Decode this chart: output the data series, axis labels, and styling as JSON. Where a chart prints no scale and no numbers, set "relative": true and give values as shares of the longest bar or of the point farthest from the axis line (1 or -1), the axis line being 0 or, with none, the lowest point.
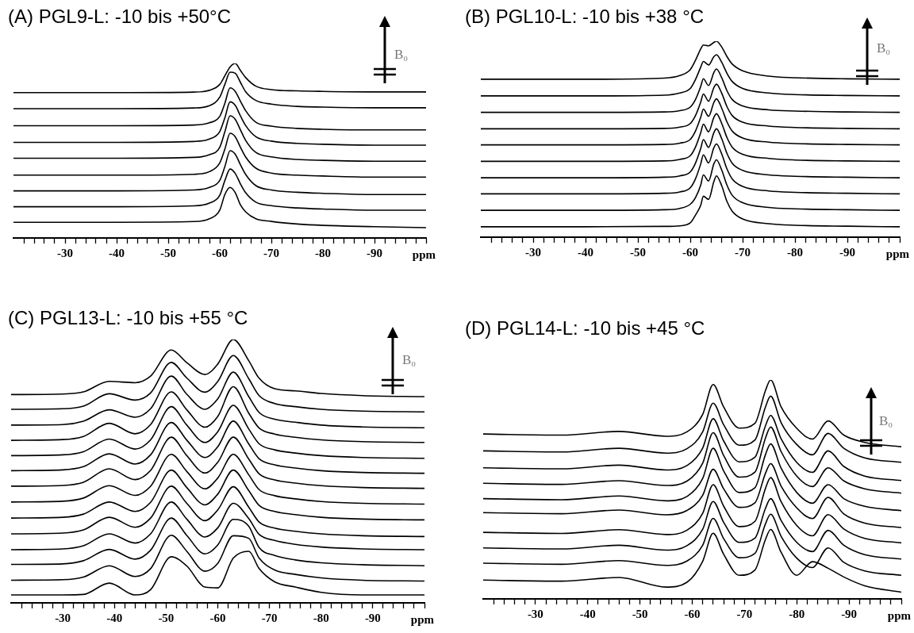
{
  "chart_data": [
    {
      "type": "line",
      "title": "(A) PGL9-L: -10 bis +50°C",
      "xlabel": "ppm",
      "relative": true,
      "marker": "none",
      "annotations": [
        "B₀"
      ],
      "xlim": [
        -20,
        -100
      ],
      "xticks": [
        {
          "value": -22,
          "label": null
        },
        {
          "value": -24,
          "label": null
        },
        {
          "value": -26,
          "label": null
        },
        {
          "value": -28,
          "label": null
        },
        -30,
        {
          "value": -32,
          "label": null
        },
        {
          "value": -34,
          "label": null
        },
        {
          "value": -36,
          "label": null
        },
        {
          "value": -38,
          "label": null
        },
        -40,
        {
          "value": -42,
          "label": null
        },
        {
          "value": -44,
          "label": null
        },
        {
          "value": -46,
          "label": null
        },
        {
          "value": -48,
          "label": null
        },
        -50,
        {
          "value": -52,
          "label": null
        },
        {
          "value": -54,
          "label": null
        },
        {
          "value": -56,
          "label": null
        },
        {
          "value": -58,
          "label": null
        },
        -60,
        {
          "value": -62,
          "label": null
        },
        {
          "value": -64,
          "label": null
        },
        {
          "value": -66,
          "label": null
        },
        {
          "value": -68,
          "label": null
        },
        -70,
        {
          "value": -72,
          "label": null
        },
        {
          "value": -74,
          "label": null
        },
        {
          "value": -76,
          "label": null
        },
        {
          "value": -78,
          "label": null
        },
        -80,
        {
          "value": -82,
          "label": null
        },
        {
          "value": -84,
          "label": null
        },
        {
          "value": -86,
          "label": null
        },
        {
          "value": -88,
          "label": null
        },
        -90,
        {
          "value": -92,
          "label": null
        },
        {
          "value": -94,
          "label": null
        },
        {
          "value": -96,
          "label": null
        },
        {
          "value": -98,
          "label": null
        },
        {
          "value": -100,
          "label": null
        }
      ],
      "x": [
        -20,
        -40,
        -55,
        -58,
        -60,
        -61,
        -62,
        -63,
        -64,
        -65,
        -67,
        -70,
        -75,
        -80,
        -90,
        -100
      ],
      "series": [
        {
          "color": "#000000",
          "values": [
            0.833,
            0.833,
            0.836,
            0.846,
            0.88,
            0.93,
            0.98,
            1.0,
            0.96,
            0.92,
            0.87,
            0.85,
            0.843,
            0.84,
            0.837,
            0.837
          ]
        },
        {
          "color": "#000000",
          "values": [
            0.741,
            0.741,
            0.745,
            0.758,
            0.807,
            0.881,
            0.95,
            0.944,
            0.892,
            0.839,
            0.788,
            0.767,
            0.754,
            0.75,
            0.746,
            0.746
          ]
        },
        {
          "color": "#000000",
          "values": [
            0.643,
            0.643,
            0.647,
            0.66,
            0.697,
            0.773,
            0.86,
            0.84,
            0.784,
            0.73,
            0.663,
            0.641,
            0.628,
            0.623,
            0.619,
            0.619
          ]
        },
        {
          "color": "#000000",
          "values": [
            0.548,
            0.548,
            0.553,
            0.567,
            0.61,
            0.69,
            0.78,
            0.76,
            0.7,
            0.645,
            0.58,
            0.555,
            0.542,
            0.537,
            0.532,
            0.532
          ]
        },
        {
          "color": "#000000",
          "values": [
            0.457,
            0.457,
            0.462,
            0.477,
            0.52,
            0.61,
            0.7,
            0.68,
            0.62,
            0.56,
            0.49,
            0.465,
            0.45,
            0.445,
            0.44,
            0.44
          ]
        },
        {
          "color": "#000000",
          "values": [
            0.36,
            0.36,
            0.365,
            0.38,
            0.43,
            0.51,
            0.6,
            0.58,
            0.52,
            0.465,
            0.4,
            0.372,
            0.36,
            0.355,
            0.349,
            0.349
          ]
        },
        {
          "color": "#000000",
          "values": [
            0.27,
            0.27,
            0.275,
            0.29,
            0.33,
            0.41,
            0.5,
            0.48,
            0.42,
            0.365,
            0.3,
            0.275,
            0.262,
            0.256,
            0.249,
            0.249
          ]
        },
        {
          "color": "#000000",
          "values": [
            0.179,
            0.179,
            0.184,
            0.2,
            0.245,
            0.33,
            0.395,
            0.37,
            0.31,
            0.26,
            0.205,
            0.185,
            0.172,
            0.166,
            0.159,
            0.159
          ]
        },
        {
          "color": "#000000",
          "values": [
            0.09,
            0.09,
            0.094,
            0.11,
            0.16,
            0.25,
            0.29,
            0.26,
            0.19,
            0.15,
            0.11,
            0.095,
            0.08,
            0.072,
            0.065,
            0.059
          ]
        }
      ]
    },
    {
      "type": "line",
      "title": "(B) PGL10-L: -10 bis +38 °C",
      "xlabel": "ppm",
      "relative": true,
      "marker": "none",
      "annotations": [
        "B₀"
      ],
      "xlim": [
        -20,
        -100
      ],
      "xticks": [
        {
          "value": -22,
          "label": null
        },
        {
          "value": -24,
          "label": null
        },
        {
          "value": -26,
          "label": null
        },
        {
          "value": -28,
          "label": null
        },
        -30,
        {
          "value": -32,
          "label": null
        },
        {
          "value": -34,
          "label": null
        },
        {
          "value": -36,
          "label": null
        },
        {
          "value": -38,
          "label": null
        },
        -40,
        {
          "value": -42,
          "label": null
        },
        {
          "value": -44,
          "label": null
        },
        {
          "value": -46,
          "label": null
        },
        {
          "value": -48,
          "label": null
        },
        -50,
        {
          "value": -52,
          "label": null
        },
        {
          "value": -54,
          "label": null
        },
        {
          "value": -56,
          "label": null
        },
        {
          "value": -58,
          "label": null
        },
        -60,
        {
          "value": -62,
          "label": null
        },
        {
          "value": -64,
          "label": null
        },
        {
          "value": -66,
          "label": null
        },
        {
          "value": -68,
          "label": null
        },
        -70,
        {
          "value": -72,
          "label": null
        },
        {
          "value": -74,
          "label": null
        },
        {
          "value": -76,
          "label": null
        },
        {
          "value": -78,
          "label": null
        },
        -80,
        {
          "value": -82,
          "label": null
        },
        {
          "value": -84,
          "label": null
        },
        {
          "value": -86,
          "label": null
        },
        {
          "value": -88,
          "label": null
        },
        -90,
        {
          "value": -92,
          "label": null
        },
        {
          "value": -94,
          "label": null
        },
        {
          "value": -96,
          "label": null
        },
        {
          "value": -98,
          "label": null
        },
        {
          "value": -100,
          "label": null
        }
      ],
      "x": [
        -20,
        -40,
        -55,
        -58,
        -60,
        -61,
        -62,
        -62.5,
        -63.5,
        -64.5,
        -65,
        -66,
        -67,
        -68,
        -70,
        -75,
        -80,
        -90,
        -100
      ],
      "series": [
        {
          "color": "#000000",
          "values": [
            0.806,
            0.806,
            0.812,
            0.825,
            0.855,
            0.903,
            0.961,
            0.981,
            0.977,
            0.994,
            1.0,
            0.971,
            0.922,
            0.884,
            0.849,
            0.822,
            0.814,
            0.808,
            0.806
          ]
        },
        {
          "color": "#000000",
          "values": [
            0.721,
            0.721,
            0.725,
            0.736,
            0.759,
            0.805,
            0.868,
            0.897,
            0.879,
            0.921,
            0.931,
            0.893,
            0.837,
            0.795,
            0.759,
            0.736,
            0.728,
            0.723,
            0.721
          ]
        },
        {
          "color": "#000000",
          "values": [
            0.637,
            0.637,
            0.639,
            0.646,
            0.664,
            0.703,
            0.77,
            0.809,
            0.774,
            0.84,
            0.858,
            0.814,
            0.748,
            0.703,
            0.67,
            0.65,
            0.644,
            0.639,
            0.637
          ]
        },
        {
          "color": "#000000",
          "values": [
            0.553,
            0.553,
            0.555,
            0.562,
            0.58,
            0.621,
            0.69,
            0.731,
            0.694,
            0.763,
            0.781,
            0.735,
            0.667,
            0.621,
            0.587,
            0.567,
            0.56,
            0.555,
            0.553
          ]
        },
        {
          "color": "#000000",
          "values": [
            0.471,
            0.471,
            0.473,
            0.48,
            0.499,
            0.542,
            0.612,
            0.654,
            0.617,
            0.687,
            0.706,
            0.659,
            0.589,
            0.542,
            0.506,
            0.485,
            0.478,
            0.473,
            0.471
          ]
        },
        {
          "color": "#000000",
          "values": [
            0.387,
            0.387,
            0.389,
            0.397,
            0.416,
            0.46,
            0.533,
            0.577,
            0.538,
            0.611,
            0.63,
            0.581,
            0.509,
            0.46,
            0.423,
            0.402,
            0.394,
            0.389,
            0.387
          ]
        },
        {
          "color": "#000000",
          "values": [
            0.303,
            0.303,
            0.306,
            0.313,
            0.333,
            0.378,
            0.453,
            0.498,
            0.458,
            0.533,
            0.553,
            0.503,
            0.428,
            0.378,
            0.341,
            0.318,
            0.311,
            0.306,
            0.303
          ]
        },
        {
          "color": "#000000",
          "values": [
            0.221,
            0.221,
            0.224,
            0.231,
            0.252,
            0.298,
            0.374,
            0.42,
            0.379,
            0.456,
            0.476,
            0.425,
            0.349,
            0.298,
            0.259,
            0.236,
            0.229,
            0.224,
            0.221
          ]
        },
        {
          "color": "#000000",
          "values": [
            0.137,
            0.137,
            0.14,
            0.147,
            0.168,
            0.202,
            0.266,
            0.318,
            0.287,
            0.374,
            0.395,
            0.343,
            0.266,
            0.214,
            0.176,
            0.152,
            0.145,
            0.14,
            0.137
          ]
        },
        {
          "color": "#000000",
          "values": [
            0.053,
            0.053,
            0.055,
            0.058,
            0.073,
            0.113,
            0.163,
            0.209,
            0.193,
            0.283,
            0.313,
            0.263,
            0.183,
            0.133,
            0.093,
            0.069,
            0.061,
            0.056,
            0.053
          ]
        }
      ]
    },
    {
      "type": "line",
      "title": "(C) PGL13-L: -10 bis +55 °C",
      "xlabel": "ppm",
      "relative": true,
      "marker": "none",
      "annotations": [
        "B₀"
      ],
      "xlim": [
        -20,
        -100
      ],
      "xticks": [
        {
          "value": -22,
          "label": null
        },
        {
          "value": -24,
          "label": null
        },
        {
          "value": -26,
          "label": null
        },
        {
          "value": -28,
          "label": null
        },
        -30,
        {
          "value": -32,
          "label": null
        },
        {
          "value": -34,
          "label": null
        },
        {
          "value": -36,
          "label": null
        },
        {
          "value": -38,
          "label": null
        },
        -40,
        {
          "value": -42,
          "label": null
        },
        {
          "value": -44,
          "label": null
        },
        {
          "value": -46,
          "label": null
        },
        {
          "value": -48,
          "label": null
        },
        -50,
        {
          "value": -52,
          "label": null
        },
        {
          "value": -54,
          "label": null
        },
        {
          "value": -56,
          "label": null
        },
        {
          "value": -58,
          "label": null
        },
        -60,
        {
          "value": -62,
          "label": null
        },
        {
          "value": -64,
          "label": null
        },
        {
          "value": -66,
          "label": null
        },
        {
          "value": -68,
          "label": null
        },
        -70,
        {
          "value": -72,
          "label": null
        },
        {
          "value": -74,
          "label": null
        },
        {
          "value": -76,
          "label": null
        },
        {
          "value": -78,
          "label": null
        },
        -80,
        {
          "value": -82,
          "label": null
        },
        {
          "value": -84,
          "label": null
        },
        {
          "value": -86,
          "label": null
        },
        {
          "value": -88,
          "label": null
        },
        -90,
        {
          "value": -92,
          "label": null
        },
        {
          "value": -94,
          "label": null
        },
        {
          "value": -96,
          "label": null
        },
        {
          "value": -98,
          "label": null
        },
        {
          "value": -100,
          "label": null
        }
      ],
      "x": [
        -20,
        -30,
        -34,
        -39,
        -44,
        -47,
        -51,
        -54,
        -57.5,
        -60,
        -63,
        -66,
        -68,
        -71,
        -75,
        -80,
        -88,
        -100
      ],
      "series": [
        {
          "color": "#000000",
          "values": [
            0.791,
            0.793,
            0.801,
            0.841,
            0.836,
            0.861,
            0.96,
            0.912,
            0.867,
            0.907,
            1.0,
            0.919,
            0.853,
            0.813,
            0.805,
            0.795,
            0.787,
            0.783
          ]
        },
        {
          "color": "#000000",
          "values": [
            0.735,
            0.737,
            0.747,
            0.794,
            0.77,
            0.797,
            0.913,
            0.854,
            0.8,
            0.841,
            0.939,
            0.851,
            0.787,
            0.757,
            0.745,
            0.735,
            0.728,
            0.725
          ]
        },
        {
          "color": "#000000",
          "values": [
            0.675,
            0.677,
            0.69,
            0.733,
            0.705,
            0.737,
            0.861,
            0.792,
            0.735,
            0.775,
            0.876,
            0.783,
            0.723,
            0.697,
            0.686,
            0.675,
            0.668,
            0.665
          ]
        },
        {
          "color": "#000000",
          "values": [
            0.617,
            0.62,
            0.632,
            0.682,
            0.642,
            0.677,
            0.801,
            0.733,
            0.667,
            0.708,
            0.821,
            0.72,
            0.664,
            0.641,
            0.629,
            0.619,
            0.612,
            0.609
          ]
        },
        {
          "color": "#000000",
          "values": [
            0.559,
            0.562,
            0.574,
            0.622,
            0.584,
            0.619,
            0.745,
            0.675,
            0.609,
            0.65,
            0.75,
            0.66,
            0.604,
            0.581,
            0.569,
            0.559,
            0.552,
            0.549
          ]
        },
        {
          "color": "#000000",
          "values": [
            0.502,
            0.505,
            0.517,
            0.566,
            0.527,
            0.562,
            0.685,
            0.618,
            0.552,
            0.593,
            0.69,
            0.603,
            0.547,
            0.524,
            0.512,
            0.502,
            0.495,
            0.492
          ]
        },
        {
          "color": "#000000",
          "values": [
            0.443,
            0.446,
            0.458,
            0.509,
            0.468,
            0.503,
            0.629,
            0.559,
            0.493,
            0.534,
            0.629,
            0.546,
            0.49,
            0.467,
            0.455,
            0.445,
            0.438,
            0.435
          ]
        },
        {
          "color": "#000000",
          "values": [
            0.383,
            0.386,
            0.398,
            0.445,
            0.408,
            0.443,
            0.564,
            0.499,
            0.433,
            0.474,
            0.564,
            0.486,
            0.43,
            0.407,
            0.395,
            0.385,
            0.378,
            0.375
          ]
        },
        {
          "color": "#000000",
          "values": [
            0.322,
            0.325,
            0.337,
            0.383,
            0.347,
            0.382,
            0.504,
            0.438,
            0.372,
            0.413,
            0.504,
            0.426,
            0.37,
            0.347,
            0.335,
            0.325,
            0.318,
            0.315
          ]
        },
        {
          "color": "#000000",
          "values": [
            0.262,
            0.265,
            0.277,
            0.325,
            0.287,
            0.322,
            0.443,
            0.378,
            0.312,
            0.353,
            0.441,
            0.363,
            0.307,
            0.284,
            0.272,
            0.262,
            0.255,
            0.252
          ]
        },
        {
          "color": "#000000",
          "values": [
            0.202,
            0.205,
            0.217,
            0.262,
            0.227,
            0.262,
            0.383,
            0.318,
            0.25,
            0.285,
            0.378,
            0.32,
            0.26,
            0.237,
            0.222,
            0.212,
            0.205,
            0.202
          ]
        },
        {
          "color": "#000000",
          "values": [
            0.146,
            0.148,
            0.16,
            0.203,
            0.166,
            0.2,
            0.322,
            0.256,
            0.186,
            0.22,
            0.317,
            0.291,
            0.21,
            0.18,
            0.163,
            0.152,
            0.145,
            0.141
          ]
        },
        {
          "color": "#000000",
          "values": [
            0.086,
            0.088,
            0.098,
            0.141,
            0.1,
            0.13,
            0.257,
            0.196,
            0.12,
            0.15,
            0.255,
            0.245,
            0.17,
            0.125,
            0.108,
            0.095,
            0.086,
            0.083
          ]
        },
        {
          "color": "#000000",
          "values": [
            0.03,
            0.03,
            0.032,
            0.075,
            0.03,
            0.05,
            0.175,
            0.14,
            0.06,
            0.057,
            0.17,
            0.196,
            0.13,
            0.08,
            0.06,
            0.04,
            0.03,
            0.03
          ]
        }
      ]
    },
    {
      "type": "line",
      "title": "(D) PGL14-L: -10 bis +45 °C",
      "xlabel": "ppm",
      "relative": true,
      "marker": "none",
      "annotations": [
        "B₀"
      ],
      "xlim": [
        -20,
        -100
      ],
      "xticks": [
        {
          "value": -22,
          "label": null
        },
        {
          "value": -24,
          "label": null
        },
        {
          "value": -26,
          "label": null
        },
        {
          "value": -28,
          "label": null
        },
        -30,
        {
          "value": -32,
          "label": null
        },
        {
          "value": -34,
          "label": null
        },
        {
          "value": -36,
          "label": null
        },
        {
          "value": -38,
          "label": null
        },
        -40,
        {
          "value": -42,
          "label": null
        },
        {
          "value": -44,
          "label": null
        },
        {
          "value": -46,
          "label": null
        },
        {
          "value": -48,
          "label": null
        },
        -50,
        {
          "value": -52,
          "label": null
        },
        {
          "value": -54,
          "label": null
        },
        {
          "value": -56,
          "label": null
        },
        {
          "value": -58,
          "label": null
        },
        -60,
        {
          "value": -62,
          "label": null
        },
        {
          "value": -64,
          "label": null
        },
        {
          "value": -66,
          "label": null
        },
        {
          "value": -68,
          "label": null
        },
        -70,
        {
          "value": -72,
          "label": null
        },
        {
          "value": -74,
          "label": null
        },
        {
          "value": -76,
          "label": null
        },
        {
          "value": -78,
          "label": null
        },
        -80,
        {
          "value": -82,
          "label": null
        },
        {
          "value": -84,
          "label": null
        },
        {
          "value": -86,
          "label": null
        },
        {
          "value": -88,
          "label": null
        },
        -90,
        {
          "value": -92,
          "label": null
        },
        {
          "value": -94,
          "label": null
        },
        {
          "value": -96,
          "label": null
        },
        {
          "value": -98,
          "label": null
        },
        {
          "value": -100,
          "label": null
        }
      ],
      "x": [
        -20,
        -35,
        -46,
        -55,
        -59,
        -62,
        -64,
        -66,
        -69,
        -72,
        -74,
        -75,
        -77,
        -80,
        -83,
        -86,
        -89,
        -93,
        -100
      ],
      "series": [
        {
          "color": "#000000",
          "values": [
            0.753,
            0.748,
            0.765,
            0.743,
            0.763,
            0.843,
            0.979,
            0.877,
            0.78,
            0.802,
            0.951,
            1.0,
            0.877,
            0.779,
            0.73,
            0.813,
            0.748,
            0.715,
            0.695
          ]
        },
        {
          "color": "#000000",
          "values": [
            0.676,
            0.671,
            0.688,
            0.666,
            0.686,
            0.763,
            0.894,
            0.796,
            0.702,
            0.726,
            0.876,
            0.926,
            0.805,
            0.705,
            0.658,
            0.756,
            0.688,
            0.644,
            0.624
          ]
        },
        {
          "color": "#000000",
          "values": [
            0.599,
            0.594,
            0.611,
            0.589,
            0.609,
            0.689,
            0.823,
            0.722,
            0.626,
            0.647,
            0.79,
            0.838,
            0.731,
            0.623,
            0.578,
            0.676,
            0.605,
            0.561,
            0.541
          ]
        },
        {
          "color": "#000000",
          "values": [
            0.528,
            0.523,
            0.54,
            0.518,
            0.538,
            0.62,
            0.759,
            0.655,
            0.556,
            0.579,
            0.734,
            0.785,
            0.673,
            0.561,
            0.513,
            0.599,
            0.539,
            0.503,
            0.483
          ]
        },
        {
          "color": "#000000",
          "values": [
            0.458,
            0.453,
            0.47,
            0.448,
            0.468,
            0.55,
            0.688,
            0.585,
            0.486,
            0.508,
            0.658,
            0.708,
            0.597,
            0.486,
            0.437,
            0.522,
            0.458,
            0.423,
            0.403
          ]
        },
        {
          "color": "#000000",
          "values": [
            0.394,
            0.389,
            0.406,
            0.384,
            0.404,
            0.473,
            0.592,
            0.503,
            0.418,
            0.439,
            0.573,
            0.618,
            0.515,
            0.416,
            0.367,
            0.464,
            0.388,
            0.346,
            0.326
          ]
        },
        {
          "color": "#000000",
          "values": [
            0.304,
            0.299,
            0.316,
            0.294,
            0.314,
            0.391,
            0.522,
            0.424,
            0.33,
            0.354,
            0.504,
            0.554,
            0.444,
            0.335,
            0.288,
            0.385,
            0.319,
            0.276,
            0.256
          ]
        },
        {
          "color": "#000000",
          "values": [
            0.233,
            0.228,
            0.245,
            0.223,
            0.243,
            0.318,
            0.445,
            0.35,
            0.258,
            0.278,
            0.413,
            0.458,
            0.358,
            0.258,
            0.216,
            0.313,
            0.245,
            0.202,
            0.182
          ]
        },
        {
          "color": "#000000",
          "values": [
            0.163,
            0.158,
            0.175,
            0.153,
            0.173,
            0.245,
            0.368,
            0.276,
            0.188,
            0.208,
            0.342,
            0.387,
            0.286,
            0.186,
            0.143,
            0.233,
            0.167,
            0.128,
            0.108
          ]
        },
        {
          "color": "#000000",
          "values": [
            0.086,
            0.081,
            0.098,
            0.054,
            0.076,
            0.172,
            0.3,
            0.204,
            0.108,
            0.132,
            0.271,
            0.317,
            0.213,
            0.108,
            0.17,
            0.14,
            0.1,
            0.06,
            0.031
          ]
        }
      ]
    }
  ]
}
